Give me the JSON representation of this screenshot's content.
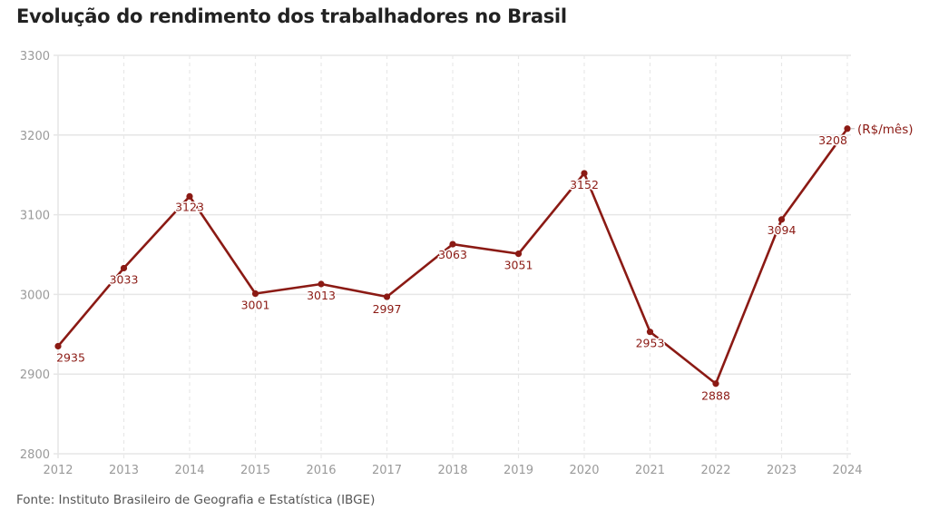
{
  "title": "Evolução do rendimento dos trabalhadores no Brasil",
  "source": "Fonte: Instituto Brasileiro de Geografia e Estatística (IBGE)",
  "colors": {
    "series": "#8b1a14",
    "grid": "#e6e6e6",
    "tick": "#9a9a9a"
  },
  "chart_data": {
    "type": "line",
    "title": "Evolução do rendimento dos trabalhadores no Brasil",
    "xlabel": "",
    "ylabel": "",
    "x": [
      2012,
      2013,
      2014,
      2015,
      2016,
      2017,
      2018,
      2019,
      2020,
      2021,
      2022,
      2023,
      2024
    ],
    "series": [
      {
        "name": "(R$/mês)",
        "values": [
          2935,
          3033,
          3123,
          3001,
          3013,
          2997,
          3063,
          3051,
          3152,
          2953,
          2888,
          3094,
          3208
        ]
      }
    ],
    "xlim": [
      2012,
      2024
    ],
    "ylim": [
      2800,
      3300
    ],
    "yticks": [
      2800,
      2900,
      3000,
      3100,
      3200,
      3300
    ],
    "xticks": [
      "2012",
      "2013",
      "2014",
      "2015",
      "2016",
      "2017",
      "2018",
      "2019",
      "2020",
      "2021",
      "2022",
      "2023",
      "2024"
    ],
    "grid": true,
    "series_label": "(R$/mês)",
    "data_labels": true
  }
}
